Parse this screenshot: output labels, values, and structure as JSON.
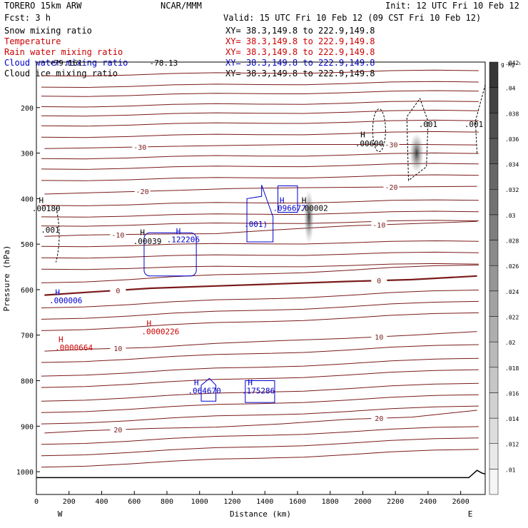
{
  "header": {
    "model": "TORERO  15km ARW",
    "org": "NCAR/MMM",
    "init": "Init: 12 UTC Fri 10 Feb 12",
    "fcst": "Fcst:     3 h",
    "valid": "Valid: 15 UTC Fri 10 Feb 12 (09 CST Fri 10 Feb 12)"
  },
  "fields": [
    {
      "name": "Snow mixing ratio",
      "xy": "XY=  38.3,149.8 to 222.9,149.8",
      "color": "#000000"
    },
    {
      "name": "Temperature",
      "xy": "XY=  38.3,149.8 to 222.9,149.8",
      "color": "#cc0000"
    },
    {
      "name": "Rain water mixing ratio",
      "xy": "XY=  38.3,149.8 to 222.9,149.8",
      "color": "#cc0000"
    },
    {
      "name": "Cloud water mixing ratio",
      "xy": "XY=  38.3,149.8 to 222.9,149.8",
      "color": "#0000cc"
    },
    {
      "name": "Cloud ice mixing ratio",
      "xy": "XY=  38.3,149.8 to 222.9,149.8",
      "color": "#000000"
    }
  ],
  "chart_data": {
    "type": "contour",
    "xlabel": "Distance (km)",
    "ylabel": "Pressure (hPa)",
    "xlim": [
      0,
      2750
    ],
    "ylim": [
      1050,
      100
    ],
    "x_ticks": [
      0,
      200,
      400,
      600,
      800,
      1000,
      1200,
      1400,
      1600,
      1800,
      2000,
      2200,
      2400,
      2600
    ],
    "y_ticks": [
      200,
      300,
      400,
      500,
      600,
      700,
      800,
      900,
      1000
    ],
    "x_end_labels": {
      "left": "W",
      "right": "E"
    },
    "colorbar": {
      "unit": "g kg⁻¹",
      "ticks": [
        ".01",
        ".012",
        ".014",
        ".016",
        ".018",
        ".02",
        ".022",
        ".024",
        ".026",
        ".028",
        ".03",
        ".032",
        ".034",
        ".036",
        ".038",
        ".04",
        ".042"
      ],
      "min": 0.01,
      "max": 0.044
    },
    "temperature_contours": [
      {
        "label": "-30",
        "x": [
          50,
          420,
          850,
          1200,
          1600,
          2000,
          2350,
          2700
        ],
        "p": [
          290,
          288,
          285,
          283,
          281,
          281,
          281,
          282
        ]
      },
      {
        "label": "-20",
        "x": [
          50,
          450,
          850,
          1200,
          1600,
          2000,
          2350,
          2700
        ],
        "p": [
          390,
          386,
          382,
          378,
          376,
          375,
          374,
          373
        ]
      },
      {
        "label": "-10",
        "x": [
          50,
          300,
          700,
          1100,
          1500,
          1900,
          2300,
          2700
        ],
        "p": [
          483,
          480,
          478,
          477,
          468,
          460,
          455,
          450
        ]
      },
      {
        "label": "0",
        "x": [
          50,
          300,
          700,
          1100,
          1500,
          1900,
          2300,
          2700
        ],
        "p": [
          612,
          606,
          597,
          592,
          587,
          582,
          578,
          570
        ]
      },
      {
        "label": "10",
        "x": [
          50,
          300,
          700,
          1100,
          1500,
          1900,
          2300,
          2700
        ],
        "p": [
          735,
          731,
          727,
          718,
          712,
          707,
          700,
          692
        ]
      },
      {
        "label": "20",
        "x": [
          50,
          300,
          700,
          1100,
          1500,
          1900,
          2300,
          2700
        ],
        "p": [
          915,
          910,
          905,
          902,
          895,
          885,
          880,
          865
        ]
      }
    ],
    "extra_isotherms_p_at_left": [
      130,
      155,
      175,
      198,
      218,
      240,
      265,
      312,
      335,
      360,
      415,
      440,
      460,
      505,
      530,
      555,
      585,
      640,
      665,
      690,
      760,
      790,
      815,
      845,
      870,
      895,
      940,
      965,
      990
    ],
    "annotations": [
      {
        "text": "-79.161",
        "x": 180,
        "p": 108,
        "color": "#000000"
      },
      {
        "text": "-78.13",
        "x": 780,
        "p": 108,
        "color": "#000000"
      },
      {
        "text": "H",
        "x": 30,
        "p": 410,
        "color": "#000000"
      },
      {
        "text": ".00180",
        "x": 60,
        "p": 428,
        "color": "#000000"
      },
      {
        "text": ".001",
        "x": 85,
        "p": 475,
        "color": "#000000"
      },
      {
        "text": "H",
        "x": 650,
        "p": 480,
        "color": "#000000"
      },
      {
        "text": ".00039",
        "x": 680,
        "p": 500,
        "color": "#000000"
      },
      {
        "text": "H",
        "x": 870,
        "p": 478,
        "color": "#0000cc"
      },
      {
        "text": ".122206",
        "x": 900,
        "p": 496,
        "color": "#0000cc"
      },
      {
        "text": ".001)",
        "x": 1345,
        "p": 462,
        "color": "#0000cc"
      },
      {
        "text": "H",
        "x": 1505,
        "p": 410,
        "color": "#0000cc"
      },
      {
        "text": ".096677",
        "x": 1550,
        "p": 427,
        "color": "#0000cc"
      },
      {
        "text": "H",
        "x": 1640,
        "p": 410,
        "color": "#000000"
      },
      {
        "text": ".00002",
        "x": 1700,
        "p": 427,
        "color": "#000000"
      },
      {
        "text": "H",
        "x": 2000,
        "p": 265,
        "color": "#000000"
      },
      {
        "text": ".00600",
        "x": 2040,
        "p": 285,
        "color": "#000000"
      },
      {
        "text": ".001",
        "x": 2400,
        "p": 243,
        "color": "#000000"
      },
      {
        "text": ".001",
        "x": 2680,
        "p": 243,
        "color": "#000000"
      },
      {
        "text": "H",
        "x": 130,
        "p": 612,
        "color": "#0000cc"
      },
      {
        "text": ".000006",
        "x": 180,
        "p": 630,
        "color": "#0000cc"
      },
      {
        "text": "H",
        "x": 690,
        "p": 680,
        "color": "#cc0000"
      },
      {
        "text": ".0000226",
        "x": 760,
        "p": 698,
        "color": "#cc0000"
      },
      {
        "text": "H",
        "x": 150,
        "p": 715,
        "color": "#cc0000"
      },
      {
        "text": ".0000664",
        "x": 230,
        "p": 733,
        "color": "#cc0000"
      },
      {
        "text": "H",
        "x": 980,
        "p": 810,
        "color": "#0000cc"
      },
      {
        "text": ".064670",
        "x": 1030,
        "p": 828,
        "color": "#0000cc"
      },
      {
        "text": "H",
        "x": 1310,
        "p": 810,
        "color": "#0000cc"
      },
      {
        "text": ".175286",
        "x": 1360,
        "p": 828,
        "color": "#0000cc"
      }
    ]
  }
}
